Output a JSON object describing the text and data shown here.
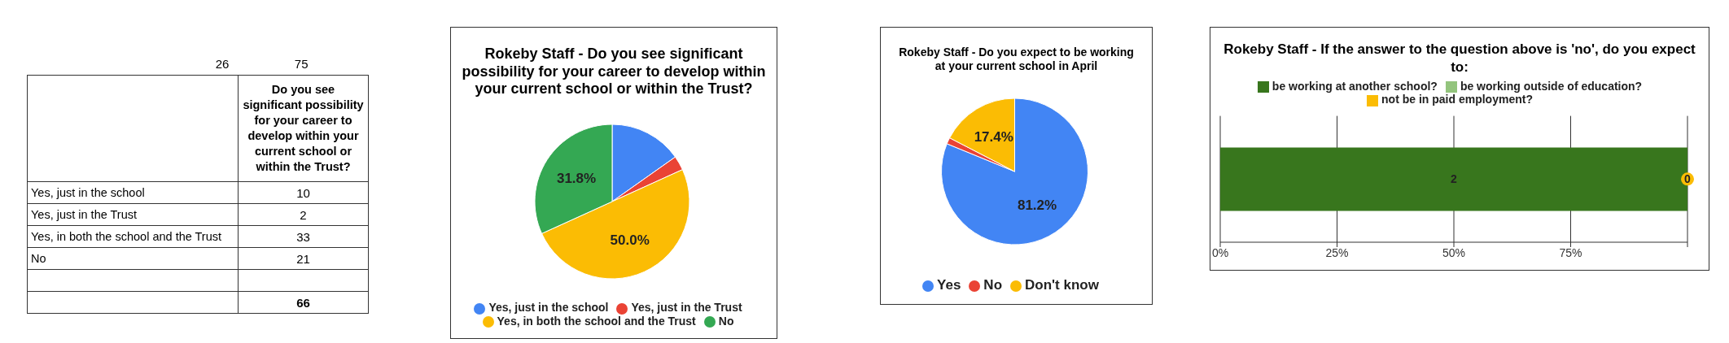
{
  "chart_data": [
    {
      "type": "other",
      "title": "Do you see significant possibility for your career to develop within your current school or within the Trust?",
      "annotations": [
        "26",
        "75",
        "Yes,  just in the school",
        "10",
        "Yes,  just in the Trust",
        "2",
        "Yes, in both the school and the Trust",
        "33",
        "No",
        "21",
        "66"
      ]
    },
    {
      "type": "pie",
      "title": "Rokeby Staff - Do you see significant possibility for your career to develop within your current school or within the Trust?",
      "categories": [
        "Yes,  just in the school",
        "Yes,  just in the Trust",
        "Yes, in both the school and the Trust",
        "No"
      ],
      "values": [
        15.2,
        3.0,
        50.0,
        31.8
      ],
      "colors": [
        "#4285f4",
        "#ea4335",
        "#fbbc04",
        "#34a853"
      ],
      "value_labels": [
        null,
        null,
        "50.0%",
        "31.8%"
      ],
      "legend": "bottom"
    },
    {
      "type": "pie",
      "title": "Rokeby Staff - Do you expect to be working at your current school in April",
      "categories": [
        "Yes",
        "No",
        "Don't know"
      ],
      "values": [
        81.2,
        1.4,
        17.4
      ],
      "colors": [
        "#4285f4",
        "#ea4335",
        "#fbbc04"
      ],
      "value_labels": [
        "81.2%",
        null,
        "17.4%"
      ],
      "legend": "bottom"
    },
    {
      "type": "bar",
      "orientation": "horizontal",
      "stacked": true,
      "title": "Rokeby Staff - If the answer to the question above is 'no', do you expect to:",
      "categories": [
        null
      ],
      "series": [
        {
          "name": "be working at another school?",
          "color": "#38761d",
          "values": [
            100
          ]
        },
        {
          "name": "be working outside of education?",
          "color": "#93c47d",
          "values": [
            0
          ]
        },
        {
          "name": "not be in paid employment?",
          "color": "#fbbc04",
          "values": [
            0
          ]
        }
      ],
      "annotations": [
        "2",
        {
          "text": "0",
          "x": 100
        }
      ],
      "xlim": [
        0,
        100
      ],
      "xticks": [
        {
          "value": 0,
          "label": "0%"
        },
        {
          "value": 25,
          "label": "25%"
        },
        {
          "value": 50,
          "label": "50%"
        },
        {
          "value": 75,
          "label": "75%"
        },
        {
          "value": 100,
          "label": null
        }
      ],
      "grid": "x",
      "legend": "top"
    }
  ]
}
